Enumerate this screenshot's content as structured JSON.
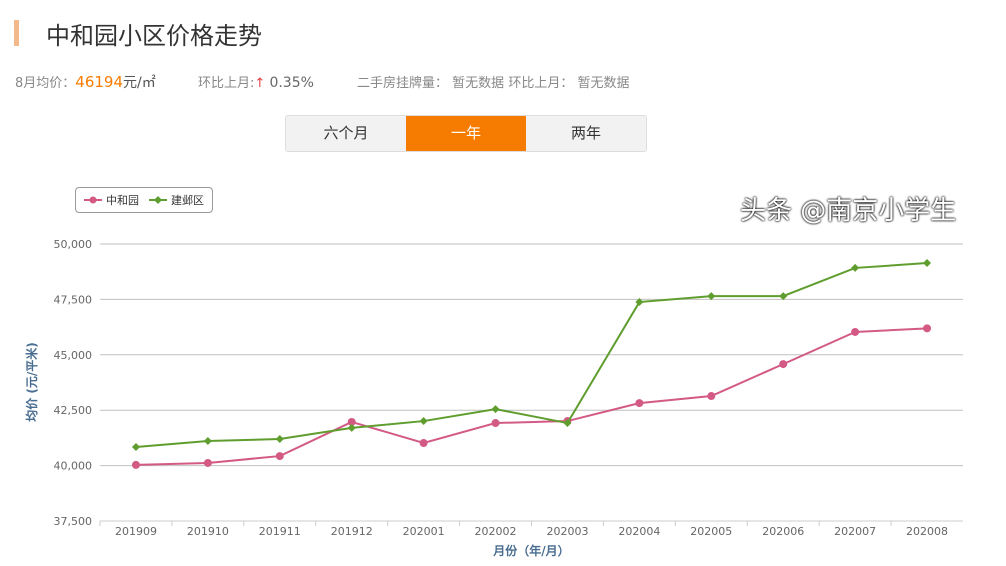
{
  "header": {
    "title": "中和园小区价格走势"
  },
  "stats": {
    "avg_label": "8月均价：",
    "avg_value": "46194",
    "avg_unit": "元/㎡",
    "mom_label": "环比上月:",
    "mom_arrow": "↑",
    "mom_value": "0.35%",
    "listing_label": "二手房挂牌量：",
    "listing_value": "暂无数据",
    "listing_mom_label": "环比上月：",
    "listing_mom_value": "暂无数据"
  },
  "tabs": [
    {
      "label": "六个月"
    },
    {
      "label": "一年",
      "active": true
    },
    {
      "label": "两年"
    }
  ],
  "watermark": "头条 @南京小学生",
  "colors": {
    "accent": "#f67c01",
    "series1": "#d35a85",
    "series2": "#5f9e2e"
  },
  "chart_data": {
    "type": "line",
    "xlabel": "月份（年/月）",
    "ylabel": "均价 (元/平米)",
    "ylim": [
      37500,
      50000
    ],
    "yticks": [
      "37,500",
      "40,000",
      "42,500",
      "45,000",
      "47,500",
      "50,000"
    ],
    "grid": true,
    "legend": "top-left",
    "categories": [
      "201909",
      "201910",
      "201911",
      "201912",
      "202001",
      "202002",
      "202003",
      "202004",
      "202005",
      "202006",
      "202007",
      "202008"
    ],
    "series": [
      {
        "name": "中和园",
        "marker": "circle",
        "values": [
          40030,
          40120,
          40430,
          41970,
          41020,
          41920,
          42010,
          42820,
          43140,
          44580,
          46030,
          46194
        ]
      },
      {
        "name": "建邺区",
        "marker": "diamond",
        "values": [
          40840,
          41110,
          41200,
          41700,
          42010,
          42550,
          41920,
          47380,
          47650,
          47650,
          48920,
          49140
        ]
      }
    ]
  }
}
